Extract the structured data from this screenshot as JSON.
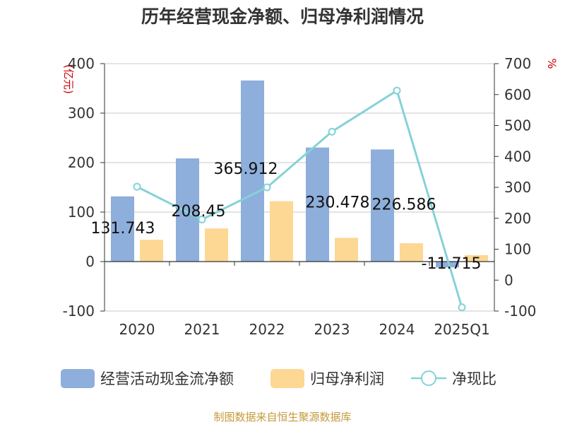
{
  "chart_data": {
    "type": "bar+line",
    "title": "历年经营现金净额、归母净利润情况",
    "categories": [
      "2020",
      "2021",
      "2022",
      "2023",
      "2024",
      "2025Q1"
    ],
    "series": [
      {
        "name": "经营活动现金流净额",
        "type": "bar",
        "axis": "left",
        "color": "#8eaedb",
        "values": [
          131.743,
          208.45,
          365.912,
          230.478,
          226.586,
          -11.715
        ],
        "labels": [
          "131.743",
          "208.45",
          "365.912",
          "230.478",
          "226.586",
          "-11.715"
        ]
      },
      {
        "name": "归母净利润",
        "type": "bar",
        "axis": "left",
        "color": "#fdd794",
        "values": [
          44,
          67,
          122,
          48,
          37,
          13
        ]
      },
      {
        "name": "净现比",
        "type": "line",
        "axis": "right",
        "color": "#85d2d8",
        "values": [
          302,
          196,
          300,
          480,
          613,
          -88
        ]
      }
    ],
    "y_left": {
      "unit": "(亿元)",
      "min": -100,
      "max": 400,
      "ticks": [
        "-100",
        "0",
        "100",
        "200",
        "300",
        "400"
      ]
    },
    "y_right": {
      "unit": "%",
      "min": -100,
      "max": 700,
      "ticks": [
        "-100",
        "0",
        "100",
        "200",
        "300",
        "400",
        "500",
        "600",
        "700"
      ]
    },
    "grid": true,
    "legend_position": "bottom",
    "source": "制图数据来自恒生聚源数据库"
  }
}
